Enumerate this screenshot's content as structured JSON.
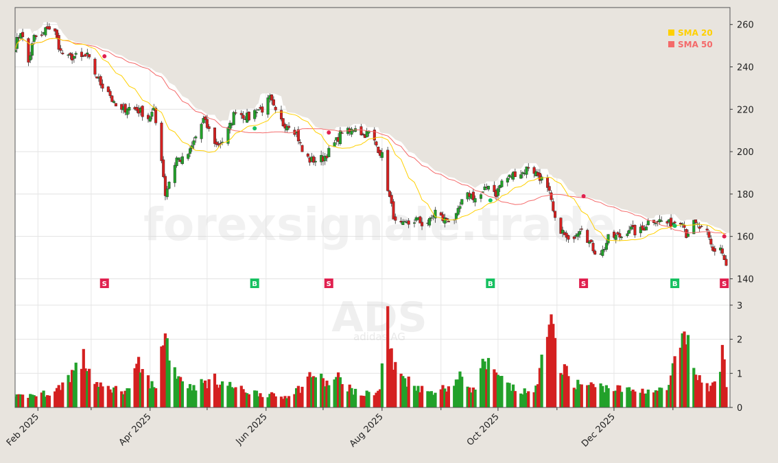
{
  "chart_data": {
    "type": "candlestick",
    "watermark": "forexsignale.trade",
    "ticker_watermark": "ADS",
    "company_watermark": "adidas AG",
    "price_axis": {
      "ylim": [
        134,
        268
      ],
      "ticks": [
        140,
        160,
        180,
        200,
        220,
        240,
        260
      ]
    },
    "volume_axis": {
      "ylim": [
        0,
        3.4
      ],
      "ticks": [
        0,
        1,
        2,
        3
      ]
    },
    "x_axis": {
      "start": "2025-01-20",
      "end": "2026-01-31",
      "tick_labels": [
        {
          "date": "2025-02-01",
          "label": "Feb 2025"
        },
        {
          "date": "2025-04-01",
          "label": "Apr 2025"
        },
        {
          "date": "2025-06-01",
          "label": "Jun 2025"
        },
        {
          "date": "2025-08-01",
          "label": "Aug 2025"
        },
        {
          "date": "2025-10-01",
          "label": "Oct 2025"
        },
        {
          "date": "2025-12-01",
          "label": "Dec 2025"
        }
      ],
      "minor_ticks": [
        "2025-03-01",
        "2025-05-01",
        "2025-07-01",
        "2025-09-01",
        "2025-11-01",
        "2026-01-01"
      ]
    },
    "legend": {
      "placement": "top-right",
      "entries": [
        {
          "name": "SMA 20",
          "color": "#ffd000"
        },
        {
          "name": "SMA 50",
          "color": "#f46a6a"
        }
      ]
    },
    "colors": {
      "up": "#22a12a",
      "down": "#d42020",
      "signal_buy": "#16c060",
      "signal_sell": "#e0204f",
      "band": "#e8e4de"
    },
    "price_anchors": [
      [
        "2025-01-20",
        250
      ],
      [
        "2025-01-23",
        257
      ],
      [
        "2025-01-27",
        242
      ],
      [
        "2025-01-30",
        254
      ],
      [
        "2025-02-03",
        254
      ],
      [
        "2025-02-06",
        259
      ],
      [
        "2025-02-10",
        256
      ],
      [
        "2025-02-13",
        247
      ],
      [
        "2025-02-17",
        244
      ],
      [
        "2025-02-20",
        245
      ],
      [
        "2025-02-24",
        244
      ],
      [
        "2025-02-27",
        245
      ],
      [
        "2025-03-03",
        237
      ],
      [
        "2025-03-06",
        232
      ],
      [
        "2025-03-10",
        229
      ],
      [
        "2025-03-13",
        222
      ],
      [
        "2025-03-17",
        219
      ],
      [
        "2025-03-20",
        221
      ],
      [
        "2025-03-24",
        220
      ],
      [
        "2025-03-27",
        219
      ],
      [
        "2025-03-31",
        216
      ],
      [
        "2025-04-03",
        219
      ],
      [
        "2025-04-07",
        197
      ],
      [
        "2025-04-09",
        180
      ],
      [
        "2025-04-11",
        186
      ],
      [
        "2025-04-15",
        197
      ],
      [
        "2025-04-18",
        196
      ],
      [
        "2025-04-22",
        200
      ],
      [
        "2025-04-25",
        207
      ],
      [
        "2025-04-29",
        215
      ],
      [
        "2025-05-02",
        210
      ],
      [
        "2025-05-06",
        203
      ],
      [
        "2025-05-09",
        205
      ],
      [
        "2025-05-13",
        212
      ],
      [
        "2025-05-16",
        220
      ],
      [
        "2025-05-20",
        217
      ],
      [
        "2025-05-23",
        216
      ],
      [
        "2025-05-27",
        220
      ],
      [
        "2025-05-30",
        220
      ],
      [
        "2025-06-03",
        225
      ],
      [
        "2025-06-06",
        218
      ],
      [
        "2025-06-10",
        213
      ],
      [
        "2025-06-13",
        213
      ],
      [
        "2025-06-17",
        209
      ],
      [
        "2025-06-20",
        200
      ],
      [
        "2025-06-24",
        196
      ],
      [
        "2025-06-27",
        196
      ],
      [
        "2025-07-01",
        197
      ],
      [
        "2025-07-04",
        200
      ],
      [
        "2025-07-08",
        205
      ],
      [
        "2025-07-11",
        210
      ],
      [
        "2025-07-15",
        209
      ],
      [
        "2025-07-18",
        212
      ],
      [
        "2025-07-22",
        208
      ],
      [
        "2025-07-25",
        209
      ],
      [
        "2025-07-29",
        203
      ],
      [
        "2025-08-01",
        198
      ],
      [
        "2025-08-05",
        178
      ],
      [
        "2025-08-08",
        166
      ],
      [
        "2025-08-12",
        165
      ],
      [
        "2025-08-15",
        166
      ],
      [
        "2025-08-19",
        168
      ],
      [
        "2025-08-22",
        166
      ],
      [
        "2025-08-26",
        167
      ],
      [
        "2025-08-29",
        172
      ],
      [
        "2025-09-02",
        168
      ],
      [
        "2025-09-05",
        168
      ],
      [
        "2025-09-09",
        169
      ],
      [
        "2025-09-12",
        176
      ],
      [
        "2025-09-16",
        180
      ],
      [
        "2025-09-19",
        178
      ],
      [
        "2025-09-23",
        180
      ],
      [
        "2025-09-26",
        185
      ],
      [
        "2025-09-30",
        180
      ],
      [
        "2025-10-03",
        186
      ],
      [
        "2025-10-07",
        188
      ],
      [
        "2025-10-10",
        190
      ],
      [
        "2025-10-14",
        190
      ],
      [
        "2025-10-17",
        193
      ],
      [
        "2025-10-21",
        190
      ],
      [
        "2025-10-24",
        187
      ],
      [
        "2025-10-28",
        180
      ],
      [
        "2025-10-31",
        167
      ],
      [
        "2025-11-04",
        162
      ],
      [
        "2025-11-07",
        157
      ],
      [
        "2025-11-11",
        162
      ],
      [
        "2025-11-14",
        165
      ],
      [
        "2025-11-18",
        157
      ],
      [
        "2025-11-21",
        153
      ],
      [
        "2025-11-25",
        153
      ],
      [
        "2025-11-28",
        159
      ],
      [
        "2025-12-02",
        160
      ],
      [
        "2025-12-05",
        160
      ],
      [
        "2025-12-09",
        164
      ],
      [
        "2025-12-12",
        162
      ],
      [
        "2025-12-16",
        163
      ],
      [
        "2025-12-19",
        167
      ],
      [
        "2025-12-23",
        168
      ],
      [
        "2025-12-30",
        166
      ],
      [
        "2026-01-02",
        167
      ],
      [
        "2026-01-06",
        168
      ],
      [
        "2026-01-08",
        161
      ],
      [
        "2026-01-12",
        166
      ],
      [
        "2026-01-15",
        164
      ],
      [
        "2026-01-19",
        161
      ],
      [
        "2026-01-22",
        153
      ],
      [
        "2026-01-26",
        155
      ],
      [
        "2026-01-29",
        146
      ]
    ],
    "volume_anchors": [
      [
        "2025-01-20",
        0.3
      ],
      [
        "2025-02-10",
        0.45
      ],
      [
        "2025-02-25",
        1.4
      ],
      [
        "2025-03-05",
        0.6
      ],
      [
        "2025-03-20",
        0.5
      ],
      [
        "2025-03-26",
        1.2
      ],
      [
        "2025-04-04",
        0.5
      ],
      [
        "2025-04-07",
        2.05
      ],
      [
        "2025-04-09",
        2.1
      ],
      [
        "2025-04-14",
        1.1
      ],
      [
        "2025-04-22",
        0.6
      ],
      [
        "2025-05-05",
        0.8
      ],
      [
        "2025-05-20",
        0.5
      ],
      [
        "2025-06-10",
        0.3
      ],
      [
        "2025-06-20",
        0.6
      ],
      [
        "2025-06-25",
        1.0
      ],
      [
        "2025-07-03",
        0.7
      ],
      [
        "2025-07-09",
        0.85
      ],
      [
        "2025-07-20",
        0.35
      ],
      [
        "2025-07-31",
        0.5
      ],
      [
        "2025-08-04",
        3.15
      ],
      [
        "2025-08-05",
        1.8
      ],
      [
        "2025-08-07",
        1.2
      ],
      [
        "2025-08-14",
        0.8
      ],
      [
        "2025-08-25",
        0.45
      ],
      [
        "2025-09-05",
        0.6
      ],
      [
        "2025-09-12",
        0.9
      ],
      [
        "2025-09-18",
        0.5
      ],
      [
        "2025-09-24",
        1.35
      ],
      [
        "2025-09-29",
        0.95
      ],
      [
        "2025-10-10",
        0.5
      ],
      [
        "2025-10-20",
        0.4
      ],
      [
        "2025-10-23",
        1.15
      ],
      [
        "2025-10-31",
        2.6
      ],
      [
        "2025-11-03",
        1.2
      ],
      [
        "2025-11-10",
        0.7
      ],
      [
        "2025-11-25",
        0.6
      ],
      [
        "2025-12-10",
        0.5
      ],
      [
        "2025-12-29",
        0.5
      ],
      [
        "2026-01-02",
        1.3
      ],
      [
        "2026-01-08",
        2.0
      ],
      [
        "2026-01-13",
        1.0
      ],
      [
        "2026-01-20",
        0.5
      ],
      [
        "2026-01-23",
        1.0
      ],
      [
        "2026-01-28",
        1.65
      ],
      [
        "2026-01-29",
        0.5
      ]
    ],
    "signals": [
      {
        "date": "2025-03-08",
        "type": "sell",
        "label": "S",
        "price": 245
      },
      {
        "date": "2025-05-26",
        "type": "buy",
        "label": "B",
        "price": 211
      },
      {
        "date": "2025-07-04",
        "type": "sell",
        "label": "S",
        "price": 209
      },
      {
        "date": "2025-09-27",
        "type": "buy",
        "label": "B",
        "price": 177
      },
      {
        "date": "2025-11-15",
        "type": "sell",
        "label": "S",
        "price": 179
      },
      {
        "date": "2026-01-02",
        "type": "buy",
        "label": "B",
        "price": 165
      },
      {
        "date": "2026-01-28",
        "type": "sell",
        "label": "S",
        "price": 160
      }
    ]
  }
}
